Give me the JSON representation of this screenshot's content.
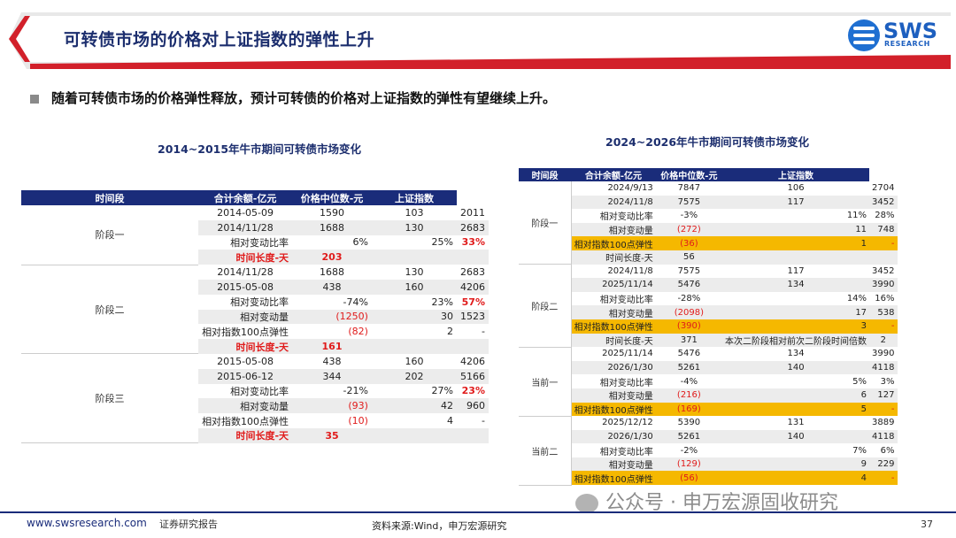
{
  "header": {
    "title": "可转债市场的价格对上证指数的弹性上升",
    "logo_name": "SWS",
    "logo_sub": "RESEARCH"
  },
  "bullet": "随着可转债市场的价格弹性释放，预计可转债的价格对上证指数的弹性有望继续上升。",
  "table1": {
    "caption": "2014~2015年牛市期间可转债市场变化",
    "headers": [
      "时间段",
      "合计余额-亿元",
      "价格中位数-元",
      "上证指数"
    ],
    "stages": [
      {
        "name": "阶段一",
        "rows": [
          {
            "label": "2014-05-09",
            "a": "1590",
            "b": "103",
            "c": "2011"
          },
          {
            "label": "2014/11/28",
            "a": "1688",
            "b": "130",
            "c": "2683"
          },
          {
            "label": "相对变动比率",
            "a": "6%",
            "b": "25%",
            "c": "33%"
          },
          {
            "label": "时间长度-天",
            "a": "203",
            "b": "",
            "c": ""
          }
        ]
      },
      {
        "name": "阶段二",
        "rows": [
          {
            "label": "2014/11/28",
            "a": "1688",
            "b": "130",
            "c": "2683"
          },
          {
            "label": "2015-05-08",
            "a": "438",
            "b": "160",
            "c": "4206"
          },
          {
            "label": "相对变动比率",
            "a": "-74%",
            "b": "23%",
            "c": "57%"
          },
          {
            "label": "相对变动量",
            "a": "(1250)",
            "b": "30",
            "c": "1523"
          },
          {
            "label": "相对指数100点弹性",
            "a": "(82)",
            "b": "2",
            "c": "-"
          },
          {
            "label": "时间长度-天",
            "a": "161",
            "b": "",
            "c": ""
          }
        ]
      },
      {
        "name": "阶段三",
        "rows": [
          {
            "label": "2015-05-08",
            "a": "438",
            "b": "160",
            "c": "4206"
          },
          {
            "label": "2015-06-12",
            "a": "344",
            "b": "202",
            "c": "5166"
          },
          {
            "label": "相对变动比率",
            "a": "-21%",
            "b": "27%",
            "c": "23%"
          },
          {
            "label": "相对变动量",
            "a": "(93)",
            "b": "42",
            "c": "960"
          },
          {
            "label": "相对指数100点弹性",
            "a": "(10)",
            "b": "4",
            "c": "-"
          },
          {
            "label": "时间长度-天",
            "a": "35",
            "b": "",
            "c": ""
          }
        ]
      }
    ]
  },
  "table2": {
    "caption": "2024~2026年牛市期间可转债市场变化",
    "headers": [
      "时间段",
      "合计余额-亿元",
      "价格中位数-元",
      "上证指数"
    ],
    "stages": [
      {
        "name": "阶段一",
        "rows": [
          {
            "label": "2024/9/13",
            "a": "7847",
            "b": "106",
            "c": "2704"
          },
          {
            "label": "2024/11/8",
            "a": "7575",
            "b": "117",
            "c": "3452"
          },
          {
            "label": "相对变动比率",
            "a": "-3%",
            "b": "11%",
            "c": "28%"
          },
          {
            "label": "相对变动量",
            "a": "(272)",
            "b": "11",
            "c": "748"
          },
          {
            "label": "相对指数100点弹性",
            "a": "(36)",
            "b": "1",
            "c": "-"
          },
          {
            "label": "时间长度-天",
            "a": "56",
            "b": "",
            "c": ""
          }
        ]
      },
      {
        "name": "阶段二",
        "rows": [
          {
            "label": "2024/11/8",
            "a": "7575",
            "b": "117",
            "c": "3452"
          },
          {
            "label": "2025/11/14",
            "a": "5476",
            "b": "134",
            "c": "3990"
          },
          {
            "label": "相对变动比率",
            "a": "-28%",
            "b": "14%",
            "c": "16%"
          },
          {
            "label": "相对变动量",
            "a": "(2098)",
            "b": "17",
            "c": "538"
          },
          {
            "label": "相对指数100点弹性",
            "a": "(390)",
            "b": "3",
            "c": "-"
          },
          {
            "label": "时间长度-天",
            "a": "371",
            "b": "本次二阶段相对前次二阶段时间倍数",
            "c": "2"
          }
        ]
      },
      {
        "name": "当前一",
        "rows": [
          {
            "label": "2025/11/14",
            "a": "5476",
            "b": "134",
            "c": "3990"
          },
          {
            "label": "2026/1/30",
            "a": "5261",
            "b": "140",
            "c": "4118"
          },
          {
            "label": "相对变动比率",
            "a": "-4%",
            "b": "5%",
            "c": "3%"
          },
          {
            "label": "相对变动量",
            "a": "(216)",
            "b": "6",
            "c": "127"
          },
          {
            "label": "相对指数100点弹性",
            "a": "(169)",
            "b": "5",
            "c": "-"
          }
        ]
      },
      {
        "name": "当前二",
        "rows": [
          {
            "label": "2025/12/12",
            "a": "5390",
            "b": "131",
            "c": "3889"
          },
          {
            "label": "2026/1/30",
            "a": "5261",
            "b": "140",
            "c": "4118"
          },
          {
            "label": "相对变动比率",
            "a": "-2%",
            "b": "7%",
            "c": "6%"
          },
          {
            "label": "相对变动量",
            "a": "(129)",
            "b": "9",
            "c": "229"
          },
          {
            "label": "相对指数100点弹性",
            "a": "(56)",
            "b": "4",
            "c": "-"
          }
        ]
      }
    ]
  },
  "footer": {
    "url": "www.swsresearch.com",
    "report": "证券研究报告",
    "source": "资料来源:Wind，申万宏源研究",
    "page": "37",
    "watermark": "公众号 · 申万宏源固收研究"
  },
  "colors": {
    "navy": "#1a2c7a",
    "red": "#e01b1b",
    "highlight": "#f5b800"
  }
}
